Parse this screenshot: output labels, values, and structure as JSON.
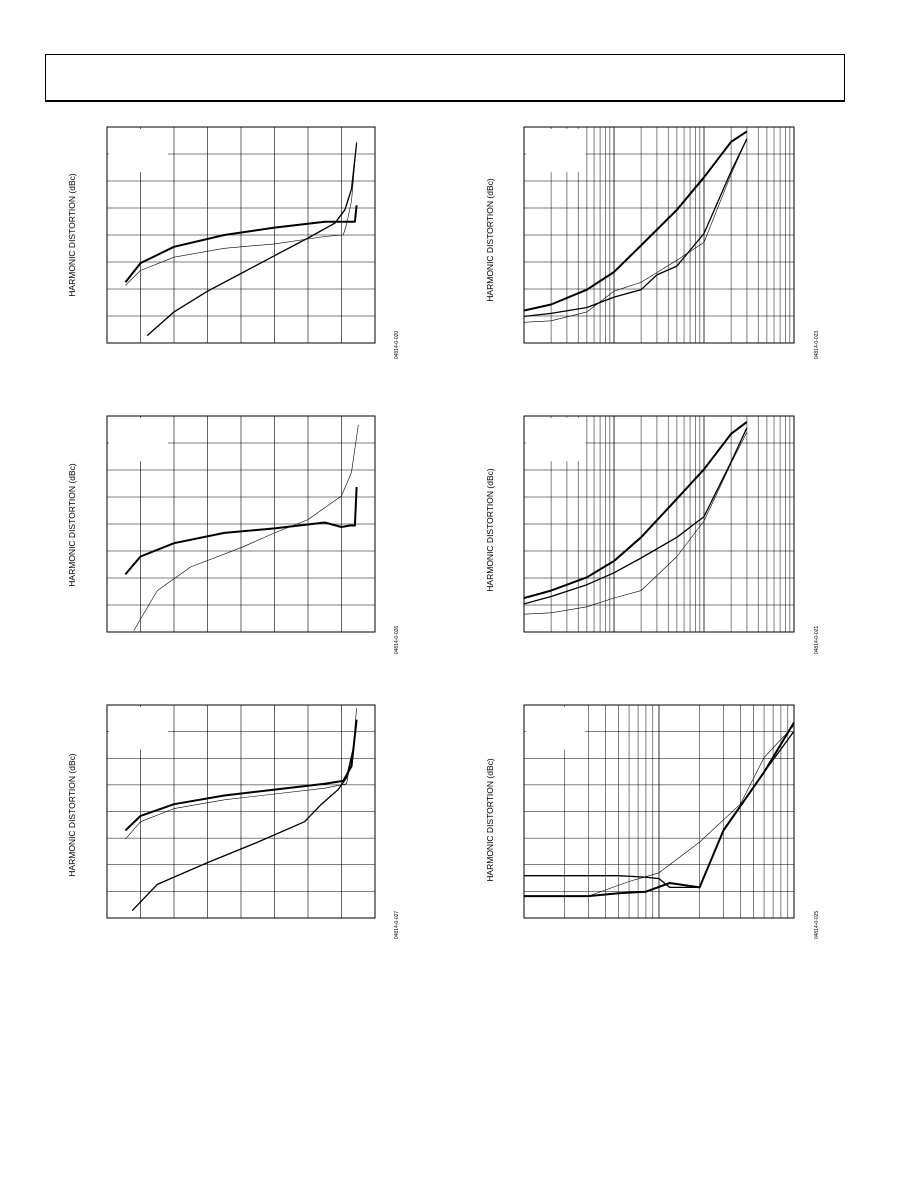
{
  "page": {
    "charts": [
      {
        "ylabel": "HARMONIC DISTORTION (dBc)",
        "figure_id": "04814-0-020"
      },
      {
        "ylabel": "HARMONIC DISTORTION (dBc)",
        "figure_id": "04814-0-023"
      },
      {
        "ylabel": "HARMONIC DISTORTION (dBc)",
        "figure_id": "04814-0-026"
      },
      {
        "ylabel": "HARMONIC DISTORTION (dBc)",
        "figure_id": "04814-0-021"
      },
      {
        "ylabel": "HARMONIC DISTORTION (dBc)",
        "figure_id": "04814-0-027"
      },
      {
        "ylabel": "HARMONIC DISTORTION (dBc)",
        "figure_id": "04814-0-025"
      }
    ]
  },
  "chart_data": [
    {
      "type": "line",
      "xscale": "linear",
      "grid": true,
      "x_range": [
        0,
        8
      ],
      "y_range": [
        0,
        7.3
      ],
      "series": [
        {
          "weight": "thick",
          "points": [
            [
              0.55,
              2.05
            ],
            [
              1.0,
              2.7
            ],
            [
              2.0,
              3.25
            ],
            [
              3.5,
              3.65
            ],
            [
              5.0,
              3.9
            ],
            [
              6.5,
              4.1
            ],
            [
              7.4,
              4.1
            ],
            [
              7.45,
              4.65
            ]
          ]
        },
        {
          "weight": "thin",
          "points": [
            [
              0.55,
              1.95
            ],
            [
              1.0,
              2.45
            ],
            [
              2.0,
              2.9
            ],
            [
              3.5,
              3.2
            ],
            [
              5.0,
              3.35
            ],
            [
              6.5,
              3.6
            ],
            [
              7.05,
              3.65
            ],
            [
              7.15,
              4.0
            ],
            [
              7.3,
              4.8
            ],
            [
              7.45,
              6.8
            ]
          ]
        },
        {
          "weight": "medium",
          "points": [
            [
              1.2,
              0.25
            ],
            [
              2.0,
              1.05
            ],
            [
              3.0,
              1.75
            ],
            [
              4.0,
              2.35
            ],
            [
              5.0,
              2.95
            ],
            [
              6.0,
              3.55
            ],
            [
              6.8,
              4.05
            ],
            [
              7.1,
              4.5
            ],
            [
              7.3,
              5.2
            ],
            [
              7.45,
              6.75
            ]
          ]
        }
      ]
    },
    {
      "type": "line",
      "xscale": "log",
      "grid": true,
      "x_range": [
        1,
        1000
      ],
      "y_range": [
        0,
        7.3
      ],
      "series": [
        {
          "weight": "thick",
          "points": [
            [
              1,
              1.1
            ],
            [
              2,
              1.3
            ],
            [
              5,
              1.8
            ],
            [
              10,
              2.4
            ],
            [
              20,
              3.3
            ],
            [
              50,
              4.5
            ],
            [
              100,
              5.6
            ],
            [
              200,
              6.8
            ],
            [
              300,
              7.15
            ]
          ]
        },
        {
          "weight": "medium",
          "points": [
            [
              1,
              0.9
            ],
            [
              2,
              1.0
            ],
            [
              5,
              1.2
            ],
            [
              10,
              1.55
            ],
            [
              20,
              1.8
            ],
            [
              30,
              2.3
            ],
            [
              50,
              2.6
            ],
            [
              100,
              3.7
            ],
            [
              200,
              5.8
            ],
            [
              300,
              6.9
            ]
          ]
        },
        {
          "weight": "thin",
          "points": [
            [
              1,
              0.7
            ],
            [
              2,
              0.75
            ],
            [
              5,
              1.05
            ],
            [
              10,
              1.75
            ],
            [
              20,
              2.05
            ],
            [
              50,
              2.8
            ],
            [
              100,
              3.4
            ],
            [
              200,
              5.7
            ],
            [
              300,
              6.9
            ]
          ]
        }
      ]
    },
    {
      "type": "line",
      "xscale": "linear",
      "grid": true,
      "x_range": [
        0,
        8
      ],
      "y_range": [
        0,
        7.3
      ],
      "series": [
        {
          "weight": "thick",
          "points": [
            [
              0.55,
              1.95
            ],
            [
              1.0,
              2.55
            ],
            [
              2.0,
              3.0
            ],
            [
              3.5,
              3.35
            ],
            [
              5.0,
              3.5
            ],
            [
              6.5,
              3.7
            ],
            [
              7.0,
              3.55
            ],
            [
              7.25,
              3.6
            ],
            [
              7.4,
              3.6
            ],
            [
              7.45,
              4.9
            ]
          ]
        },
        {
          "weight": "thin",
          "points": [
            [
              0.8,
              0.05
            ],
            [
              1.5,
              1.4
            ],
            [
              2.5,
              2.2
            ],
            [
              4.0,
              2.85
            ],
            [
              5.0,
              3.35
            ],
            [
              6.0,
              3.8
            ],
            [
              7.0,
              4.6
            ],
            [
              7.3,
              5.4
            ],
            [
              7.5,
              7.0
            ]
          ]
        }
      ]
    },
    {
      "type": "line",
      "xscale": "log",
      "grid": true,
      "x_range": [
        1,
        1000
      ],
      "y_range": [
        0,
        7.3
      ],
      "series": [
        {
          "weight": "thick",
          "points": [
            [
              1,
              1.15
            ],
            [
              2,
              1.4
            ],
            [
              5,
              1.85
            ],
            [
              10,
              2.4
            ],
            [
              20,
              3.2
            ],
            [
              50,
              4.5
            ],
            [
              100,
              5.5
            ],
            [
              200,
              6.7
            ],
            [
              300,
              7.1
            ]
          ]
        },
        {
          "weight": "medium",
          "points": [
            [
              1,
              0.95
            ],
            [
              2,
              1.2
            ],
            [
              5,
              1.6
            ],
            [
              10,
              2.0
            ],
            [
              20,
              2.5
            ],
            [
              50,
              3.2
            ],
            [
              100,
              3.9
            ],
            [
              200,
              5.75
            ],
            [
              300,
              6.9
            ]
          ]
        },
        {
          "weight": "thin",
          "points": [
            [
              1,
              0.6
            ],
            [
              2,
              0.65
            ],
            [
              5,
              0.85
            ],
            [
              10,
              1.15
            ],
            [
              20,
              1.4
            ],
            [
              50,
              2.55
            ],
            [
              100,
              3.75
            ],
            [
              200,
              5.7
            ],
            [
              300,
              6.75
            ]
          ]
        }
      ]
    },
    {
      "type": "line",
      "xscale": "linear",
      "grid": true,
      "x_range": [
        0,
        8
      ],
      "y_range": [
        0,
        7.3
      ],
      "series": [
        {
          "weight": "thick",
          "points": [
            [
              0.55,
              3.0
            ],
            [
              1.0,
              3.5
            ],
            [
              2.0,
              3.9
            ],
            [
              3.5,
              4.2
            ],
            [
              5.0,
              4.4
            ],
            [
              6.5,
              4.6
            ],
            [
              7.05,
              4.7
            ],
            [
              7.3,
              5.2
            ],
            [
              7.45,
              6.8
            ]
          ]
        },
        {
          "weight": "thin",
          "points": [
            [
              0.55,
              2.7
            ],
            [
              1.0,
              3.3
            ],
            [
              2.0,
              3.75
            ],
            [
              3.5,
              4.05
            ],
            [
              5.0,
              4.25
            ],
            [
              6.5,
              4.45
            ],
            [
              7.15,
              4.6
            ],
            [
              7.35,
              5.8
            ],
            [
              7.45,
              7.2
            ]
          ]
        },
        {
          "weight": "medium",
          "points": [
            [
              0.75,
              0.25
            ],
            [
              1.5,
              1.15
            ],
            [
              3.0,
              1.9
            ],
            [
              4.5,
              2.6
            ],
            [
              5.9,
              3.3
            ],
            [
              6.4,
              3.9
            ],
            [
              6.9,
              4.4
            ],
            [
              7.15,
              4.8
            ],
            [
              7.35,
              5.8
            ]
          ]
        }
      ]
    },
    {
      "type": "line",
      "xscale": "log",
      "grid": true,
      "x_range": [
        1,
        100
      ],
      "y_range": [
        0,
        7.3
      ],
      "series": [
        {
          "weight": "thick",
          "points": [
            [
              1,
              0.75
            ],
            [
              3,
              0.75
            ],
            [
              5,
              0.85
            ],
            [
              8,
              0.9
            ],
            [
              12,
              1.2
            ],
            [
              20,
              1.05
            ],
            [
              30,
              3.0
            ],
            [
              60,
              5.0
            ],
            [
              100,
              6.7
            ]
          ]
        },
        {
          "weight": "medium",
          "points": [
            [
              1,
              1.45
            ],
            [
              3,
              1.45
            ],
            [
              5,
              1.45
            ],
            [
              8,
              1.4
            ],
            [
              10,
              1.35
            ],
            [
              12,
              1.05
            ],
            [
              20,
              1.05
            ],
            [
              30,
              3.0
            ],
            [
              60,
              5.0
            ],
            [
              100,
              6.4
            ]
          ]
        },
        {
          "weight": "thin",
          "points": [
            [
              1,
              0.75
            ],
            [
              3,
              0.75
            ],
            [
              6,
              1.25
            ],
            [
              10,
              1.55
            ],
            [
              20,
              2.6
            ],
            [
              40,
              3.9
            ],
            [
              60,
              5.5
            ],
            [
              100,
              6.6
            ]
          ]
        }
      ]
    }
  ]
}
